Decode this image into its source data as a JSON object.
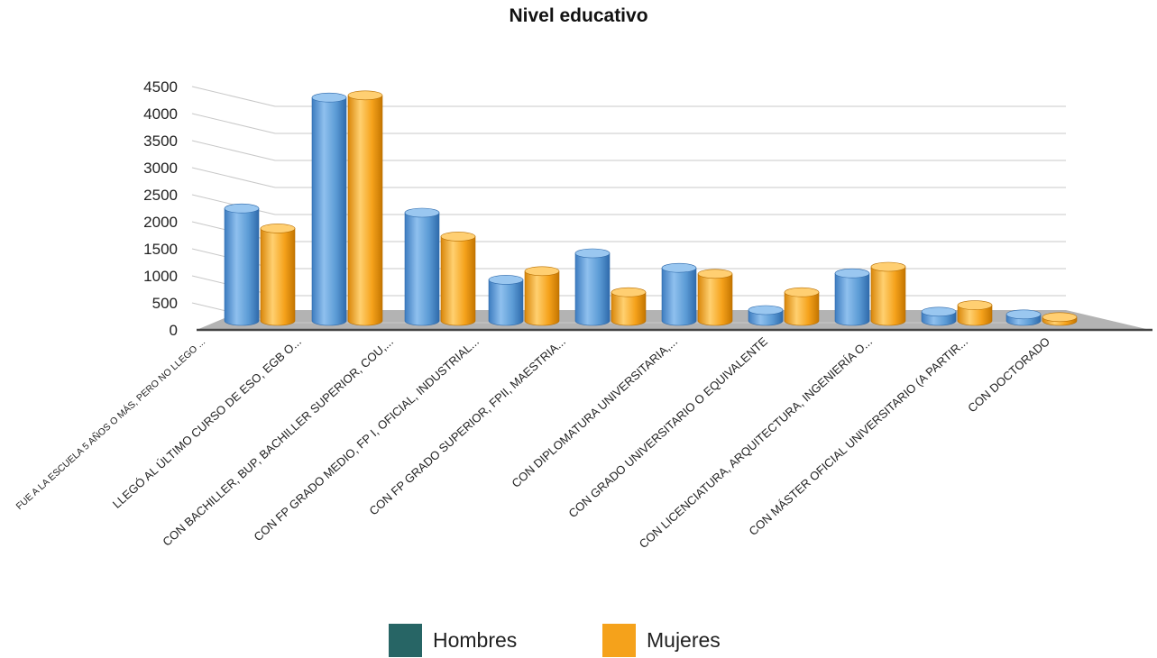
{
  "chart_data": {
    "type": "bar",
    "title": "Nivel educativo",
    "categories": [
      "FUE A LA ESCUELA 5 AÑOS O MÁS, PERO NO LLEGO ...",
      "LLEGÓ AL ÚLTIMO CURSO DE ESO, EGB O...",
      "CON BACHILLER, BUP, BACHILLER SUPERIOR, COU,...",
      "CON FP GRADO MEDIO, FP I, OFICIAL, INDUSTRIAL...",
      "CON FP GRADO SUPERIOR, FPII, MAESTRIA...",
      "CON DIPLOMATURA UNIVERSITARIA,...",
      "CON GRADO UNIVERSITARIO O EQUIVALENTE",
      "CON LICENCIATURA, ARQUITECTURA, INGENIERÍA O...",
      "CON MÁSTER OFICIAL UNIVERSITARIO (A PARTIR...",
      "CON DOCTORADO"
    ],
    "series": [
      {
        "name": "Hombres",
        "values": [
          2080,
          4130,
          2000,
          760,
          1250,
          980,
          200,
          880,
          170,
          120
        ]
      },
      {
        "name": "Mujeres",
        "values": [
          1710,
          4170,
          1560,
          920,
          530,
          870,
          530,
          1000,
          290,
          70
        ]
      }
    ],
    "ylim": [
      0,
      4500
    ],
    "yticks": [
      "0",
      "500",
      "1000",
      "1500",
      "2000",
      "2500",
      "3000",
      "3500",
      "4000",
      "4500"
    ],
    "grid": true,
    "legend_position": "bottom",
    "colors": {
      "Hombres": "#5b9bd5",
      "Mujeres": "#f5a21b",
      "legend_hombres": "#276565",
      "legend_mujeres": "#f5a21b",
      "floor": "#b3b3b3",
      "grid": "#c8c8c8"
    }
  },
  "legend": {
    "hombres_label": "Hombres",
    "mujeres_label": "Mujeres"
  }
}
